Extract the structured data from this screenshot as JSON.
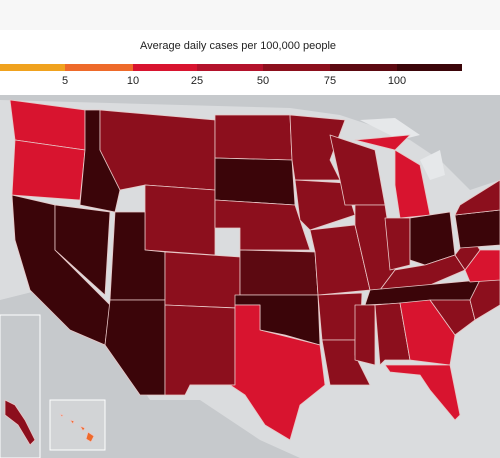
{
  "legend": {
    "title": "Average daily cases per 100,000 people",
    "ticks": [
      5,
      10,
      25,
      50,
      75,
      100
    ],
    "colors": [
      "#f0a21e",
      "#ee6a2a",
      "#d8142f",
      "#b3122b",
      "#8c0f1d",
      "#5c0911",
      "#3b0509"
    ]
  }
}
